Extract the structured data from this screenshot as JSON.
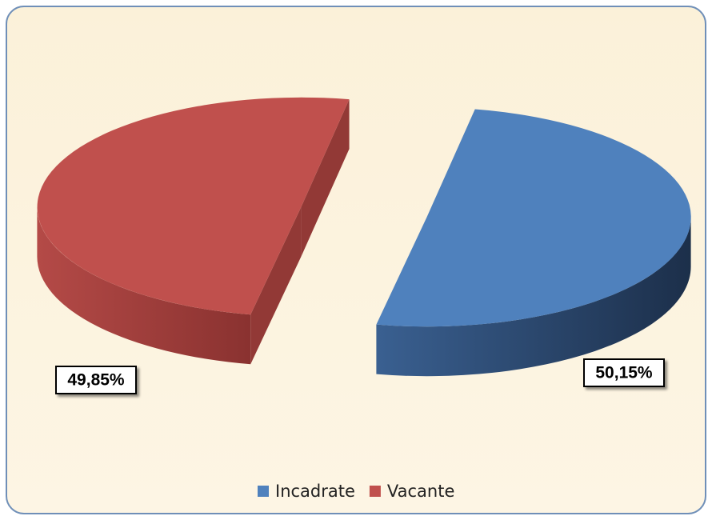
{
  "chart_data": {
    "type": "pie3d",
    "categories": [
      "Incadrate",
      "Vacante"
    ],
    "series": [
      {
        "values": [
          50.15,
          49.85
        ],
        "value_labels": [
          "50,15%",
          "49,85%"
        ],
        "colors": [
          "#4f81bd",
          "#c0504d"
        ]
      }
    ],
    "legend": "bottom"
  }
}
